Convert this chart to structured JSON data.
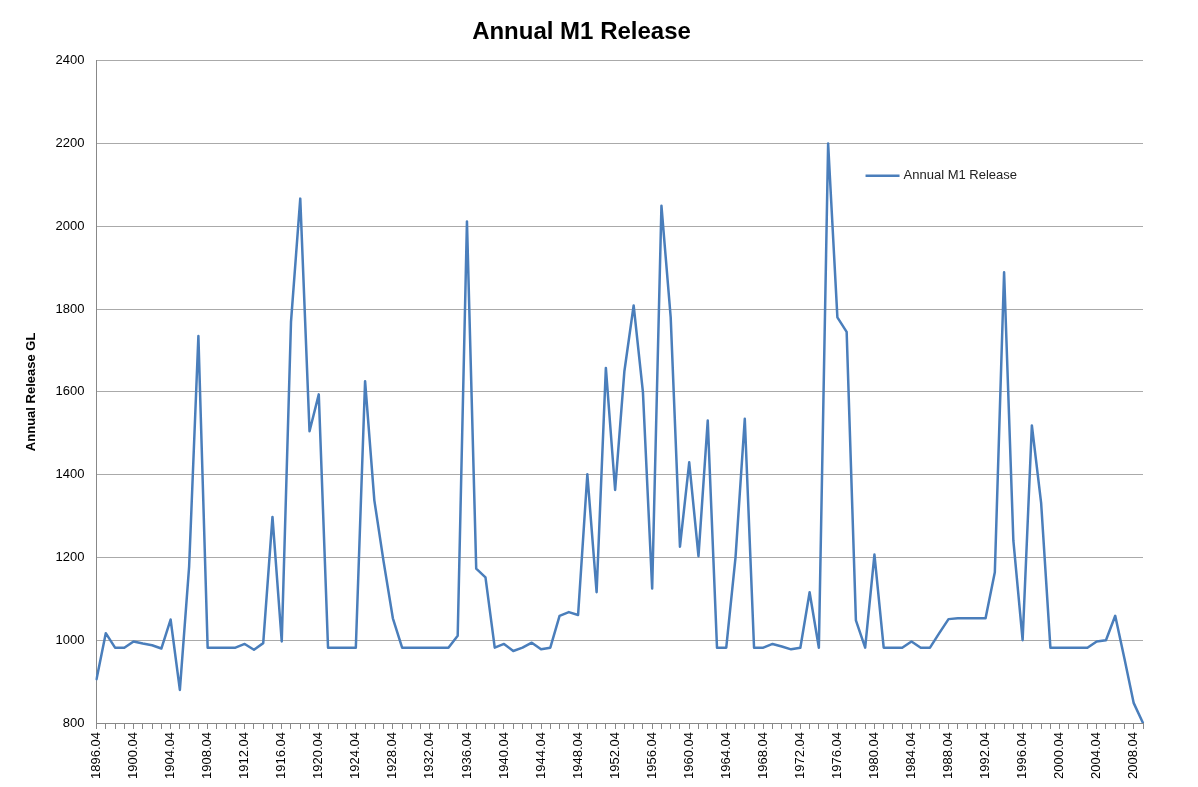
{
  "chart_data": {
    "type": "line",
    "title": "Annual M1 Release",
    "ylabel": "Annual Release GL",
    "categories": [
      "1896.04",
      null,
      null,
      null,
      "1900.04",
      null,
      null,
      null,
      "1904.04",
      null,
      null,
      null,
      "1908.04",
      null,
      null,
      null,
      "1912.04",
      null,
      null,
      null,
      "1916.04",
      null,
      null,
      null,
      "1920.04",
      null,
      null,
      null,
      "1924.04",
      null,
      null,
      null,
      "1928.04",
      null,
      null,
      null,
      "1932.04",
      null,
      null,
      null,
      "1936.04",
      null,
      null,
      null,
      "1940.04",
      null,
      null,
      null,
      "1944.04",
      null,
      null,
      null,
      "1948.04",
      null,
      null,
      null,
      "1952.04",
      null,
      null,
      null,
      "1956.04",
      null,
      null,
      null,
      "1960.04",
      null,
      null,
      null,
      "1964.04",
      null,
      null,
      null,
      "1968.04",
      null,
      null,
      null,
      "1972.04",
      null,
      null,
      null,
      "1976.04",
      null,
      null,
      null,
      "1980.04",
      null,
      null,
      null,
      "1984.04",
      null,
      null,
      null,
      "1988.04",
      null,
      null,
      null,
      "1992.04",
      null,
      null,
      null,
      "1996.04",
      null,
      null,
      null,
      "2000.04",
      null,
      null,
      null,
      "2004.04",
      null,
      null,
      null,
      "2008.04",
      null
    ],
    "series": [
      {
        "name": "Annual M1 Release",
        "color": "#4a7ebb",
        "values": [
          906,
          1017,
          982,
          982,
          997,
          992,
          988,
          980,
          1050,
          880,
          1178,
          1735,
          982,
          982,
          982,
          982,
          991,
          977,
          993,
          1298,
          997,
          1769,
          2067,
          1505,
          1594,
          982,
          982,
          982,
          982,
          1626,
          1338,
          1190,
          1053,
          982,
          982,
          982,
          982,
          982,
          982,
          1011,
          2012,
          1173,
          1152,
          982,
          991,
          974,
          982,
          994,
          978,
          982,
          1059,
          1068,
          1061,
          1401,
          1116,
          1658,
          1363,
          1650,
          1809,
          1600,
          1125,
          2050,
          1780,
          1226,
          1430,
          1203,
          1531,
          982,
          982,
          1200,
          1535,
          982,
          982,
          991,
          985,
          978,
          982,
          1116,
          982,
          2200,
          1780,
          1745,
          1048,
          982,
          1207,
          982,
          982,
          982,
          997,
          982,
          982,
          1017,
          1051,
          1053,
          1053,
          1053,
          1053,
          1164,
          1889,
          1241,
          1000,
          1519,
          1332,
          982,
          982,
          982,
          982,
          982,
          997,
          1000,
          1059,
          955,
          848,
          800
        ]
      }
    ],
    "ylim": [
      800,
      2400
    ],
    "yticks": [
      800,
      1000,
      1200,
      1400,
      1600,
      1800,
      2000,
      2200,
      2400
    ],
    "grid": "y",
    "legend": "top right",
    "marker": "none",
    "line_style": "solid"
  }
}
